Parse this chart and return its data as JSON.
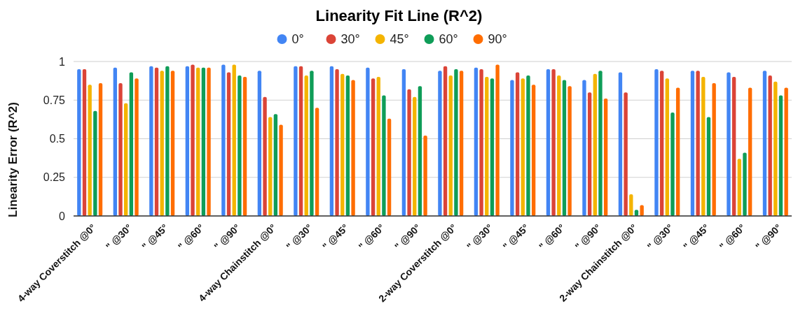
{
  "chart_data": {
    "type": "bar",
    "title": "Linearity Fit Line (R^2)",
    "ylabel": "Linearity Error (R^2)",
    "categories": [
      "4-way Coverstitch @0°",
      "\" @30°",
      "\" @45°",
      "\" @60°",
      "\" @90°",
      "4-way Chainstitch @0°",
      "\" @30°",
      "\" @45°",
      "\" @60°",
      "\" @90°",
      "2-way Coverstitch @0°",
      "\" @30°",
      "\" @45°",
      "\" @60°",
      "\" @90°",
      "2-way Chainstitch @0°",
      "\" @30°",
      "\" @45°",
      "\" @60°",
      "\" @90°"
    ],
    "series": [
      {
        "name": "0°",
        "color": "#4285f4",
        "values": [
          0.95,
          0.96,
          0.97,
          0.97,
          0.98,
          0.94,
          0.97,
          0.97,
          0.96,
          0.95,
          0.94,
          0.96,
          0.88,
          0.95,
          0.88,
          0.93,
          0.95,
          0.94,
          0.93,
          0.94
        ]
      },
      {
        "name": "30°",
        "color": "#db4437",
        "values": [
          0.95,
          0.86,
          0.96,
          0.98,
          0.93,
          0.77,
          0.97,
          0.95,
          0.89,
          0.82,
          0.97,
          0.95,
          0.93,
          0.95,
          0.8,
          0.8,
          0.94,
          0.94,
          0.9,
          0.91
        ]
      },
      {
        "name": "45°",
        "color": "#f4b400",
        "values": [
          0.85,
          0.73,
          0.94,
          0.96,
          0.98,
          0.64,
          0.91,
          0.92,
          0.9,
          0.77,
          0.91,
          0.9,
          0.89,
          0.91,
          0.92,
          0.14,
          0.89,
          0.9,
          0.37,
          0.87
        ]
      },
      {
        "name": "60°",
        "color": "#0f9d58",
        "values": [
          0.68,
          0.93,
          0.97,
          0.96,
          0.91,
          0.66,
          0.94,
          0.91,
          0.78,
          0.84,
          0.95,
          0.89,
          0.91,
          0.88,
          0.94,
          0.04,
          0.67,
          0.64,
          0.41,
          0.78
        ]
      },
      {
        "name": "90°",
        "color": "#ff6d00",
        "values": [
          0.86,
          0.89,
          0.94,
          0.96,
          0.9,
          0.59,
          0.7,
          0.88,
          0.63,
          0.52,
          0.94,
          0.98,
          0.85,
          0.84,
          0.76,
          0.07,
          0.83,
          0.86,
          0.83,
          0.83
        ]
      }
    ],
    "ylim": [
      0,
      1.0
    ],
    "yticks": [
      0,
      0.25,
      0.5,
      0.75,
      1
    ],
    "grid": "y",
    "legend": "top"
  }
}
